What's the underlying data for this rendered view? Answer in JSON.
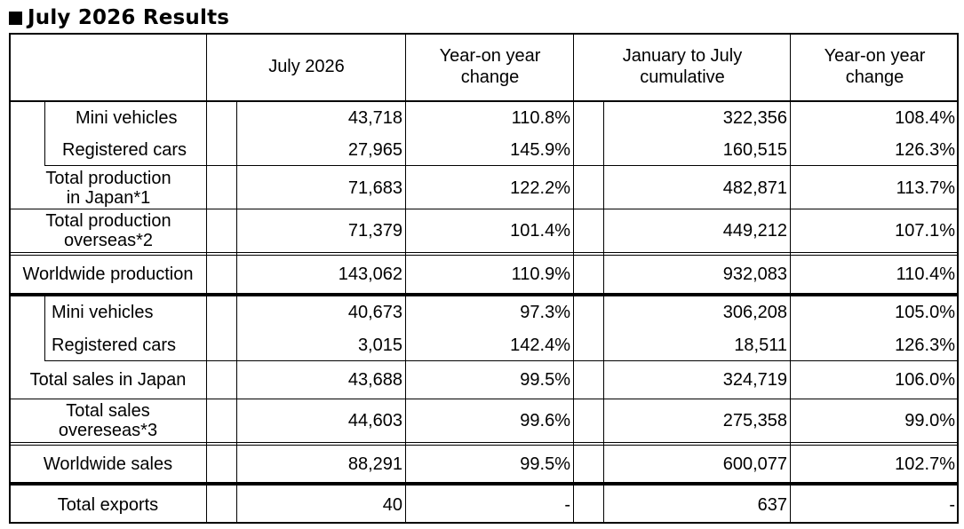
{
  "title": "July 2026 Results",
  "header": {
    "month": "July 2026",
    "yoy1_line1": "Year-on year",
    "yoy1_line2": "change",
    "cum_line1": "January to July",
    "cum_line2": "cumulative",
    "yoy2_line1": "Year-on year",
    "yoy2_line2": "change"
  },
  "rows": [
    {
      "label": "Mini vehicles",
      "month": "43,718",
      "yoy1": "110.8%",
      "cum": "322,356",
      "yoy2": "108.4%"
    },
    {
      "label": "Registered cars",
      "month": "27,965",
      "yoy1": "145.9%",
      "cum": "160,515",
      "yoy2": "126.3%"
    },
    {
      "label_line1": "Total production",
      "label_line2": "in Japan*1",
      "month": "71,683",
      "yoy1": "122.2%",
      "cum": "482,871",
      "yoy2": "113.7%"
    },
    {
      "label_line1": "Total production",
      "label_line2": "overseas*2",
      "month": "71,379",
      "yoy1": "101.4%",
      "cum": "449,212",
      "yoy2": "107.1%"
    },
    {
      "label": "Worldwide production",
      "month": "143,062",
      "yoy1": "110.9%",
      "cum": "932,083",
      "yoy2": "110.4%"
    },
    {
      "label": "Mini vehicles",
      "month": "40,673",
      "yoy1": "97.3%",
      "cum": "306,208",
      "yoy2": "105.0%"
    },
    {
      "label": "Registered cars",
      "month": "3,015",
      "yoy1": "142.4%",
      "cum": "18,511",
      "yoy2": "126.3%"
    },
    {
      "label": "Total sales in Japan",
      "month": "43,688",
      "yoy1": "99.5%",
      "cum": "324,719",
      "yoy2": "106.0%"
    },
    {
      "label_line1": "Total sales",
      "label_line2": "overeseas*3",
      "month": "44,603",
      "yoy1": "99.6%",
      "cum": "275,358",
      "yoy2": "99.0%"
    },
    {
      "label": "Worldwide sales",
      "month": "88,291",
      "yoy1": "99.5%",
      "cum": "600,077",
      "yoy2": "102.7%"
    },
    {
      "label": "Total exports",
      "month": "40",
      "yoy1": "-",
      "cum": "637",
      "yoy2": "-"
    }
  ]
}
